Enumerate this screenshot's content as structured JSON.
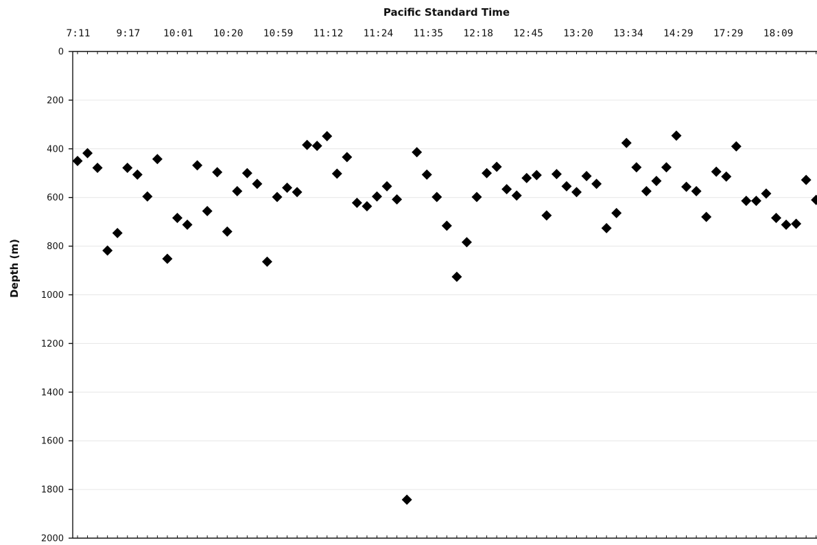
{
  "chart_data": {
    "type": "scatter",
    "title": "",
    "xlabel": "Pacific Standard Time",
    "ylabel": "Depth (m)",
    "x_axis_position": "top",
    "y_axis_inverted": true,
    "ylim": [
      0,
      2000
    ],
    "y_ticks": [
      0,
      200,
      400,
      600,
      800,
      1000,
      1200,
      1400,
      1600,
      1800,
      2000
    ],
    "x_tick_labels": [
      "7:11",
      "9:17",
      "10:01",
      "10:20",
      "10:59",
      "11:12",
      "11:24",
      "11:35",
      "12:18",
      "12:45",
      "13:20",
      "13:34",
      "14:29",
      "17:29",
      "18:09"
    ],
    "grid": true,
    "legend": "none",
    "marker": "diamond",
    "marker_color": "#000000",
    "series": [
      {
        "values": [
          450,
          418,
          478,
          818,
          746,
          478,
          506,
          596,
          442,
          852,
          684,
          712,
          468,
          656,
          496,
          740,
          574,
          500,
          544,
          864,
          598,
          560,
          578,
          384,
          388,
          348,
          502,
          434,
          622,
          636,
          596,
          554,
          608,
          1842,
          414,
          506,
          598,
          716,
          926,
          784,
          598,
          500,
          474,
          566,
          592,
          520,
          508,
          674,
          504,
          554,
          578,
          512,
          544,
          726,
          664,
          376,
          476,
          574,
          532,
          476,
          346,
          556,
          574,
          680,
          494,
          514,
          390,
          614,
          614,
          584,
          684,
          712,
          708,
          528,
          610
        ]
      }
    ]
  }
}
